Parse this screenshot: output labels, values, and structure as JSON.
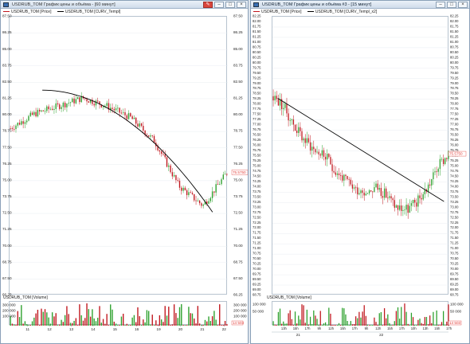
{
  "colors": {
    "bull": "#2ca02c",
    "bear": "#c0161d",
    "fit": "#000000",
    "price_tag": "#e3403a",
    "grid": "#e3e8ef"
  },
  "left": {
    "title": "USDRUB_TOM График цены и объёма - [60 минут]",
    "legend": [
      "USDRUB_TOM [Price]",
      "USDRUB_TOM [CURV_Templ]"
    ],
    "volume_legend": "USDRUB_TOM [Volume]",
    "buttons": [
      "pin-icon",
      "minimize-icon",
      "maximize-icon",
      "close-icon"
    ],
    "price_axis": [
      "87.50",
      "86.25",
      "85.00",
      "83.75",
      "82.50",
      "81.25",
      "80.00",
      "78.75",
      "77.50",
      "76.25",
      "75.00",
      "73.75",
      "72.50",
      "71.25",
      "70.00",
      "68.75",
      "67.50",
      "66.25"
    ],
    "current_price": "75.5750",
    "volume_axis": [
      "300 000",
      "200 000",
      "100 000"
    ],
    "volume_tag": "14 503",
    "dates": [
      "11",
      "12",
      "13",
      "14",
      "15",
      "16",
      "19",
      "20",
      "21",
      "22"
    ]
  },
  "right": {
    "title": "USDRUB_TOM График цены и объёма #3 - [15 минут]",
    "legend": [
      "USDRUB_TOM [Price]",
      "USDRUB_TOM [CURV_Templ_x2]"
    ],
    "volume_legend": "USDRUB_TOM [Volume]",
    "buttons": [
      "minimize-icon",
      "maximize-icon",
      "close-icon"
    ],
    "price_axis": [
      "82.25",
      "82.00",
      "81.75",
      "81.50",
      "81.25",
      "81.00",
      "80.75",
      "80.50",
      "80.25",
      "80.00",
      "79.75",
      "79.50",
      "79.25",
      "79.00",
      "78.75",
      "78.50",
      "78.25",
      "78.00",
      "77.75",
      "77.50",
      "77.25",
      "77.00",
      "76.75",
      "76.50",
      "76.25",
      "76.00",
      "75.75",
      "75.50",
      "75.25",
      "75.00",
      "74.75",
      "74.50",
      "74.25",
      "74.00",
      "73.75",
      "73.50",
      "73.25",
      "73.00",
      "72.75",
      "72.50",
      "72.25",
      "72.00",
      "71.75",
      "71.50",
      "71.25",
      "71.00",
      "70.75",
      "70.50",
      "70.25",
      "70.00",
      "69.75",
      "69.50",
      "69.25",
      "69.00",
      "68.75"
    ],
    "current_price": "75.5750",
    "volume_axis": [
      "100 000",
      "50 000"
    ],
    "volume_tag": "14 503",
    "time_ticks": [
      "13h",
      "15h",
      "17h",
      "9h",
      "12h",
      "15h",
      "17h",
      "9h",
      "12h",
      "15h",
      "17h",
      "10h",
      "13h",
      "15h",
      "17h"
    ],
    "day_labels": [
      "21",
      "22"
    ]
  },
  "chart_data": [
    {
      "type": "candlestick",
      "title": "USDRUB_TOM",
      "interval": "60 минут",
      "ylim": [
        66.25,
        87.5
      ],
      "x": [
        "11",
        "12",
        "13",
        "14",
        "15",
        "16",
        "19",
        "20",
        "21",
        "22"
      ],
      "close": [
        79.0,
        80.1,
        80.7,
        81.3,
        80.7,
        79.8,
        78.0,
        74.6,
        73.1,
        75.6
      ],
      "fit_curve": {
        "name": "USDRUB_TOM [CURV_Templ]",
        "shape": "parabola",
        "start": 81.9,
        "end": 72.6
      },
      "volume": [
        180000,
        110000,
        120000,
        260000,
        130000,
        160000,
        150000,
        190000,
        200000,
        14503
      ]
    },
    {
      "type": "candlestick",
      "title": "USDRUB_TOM",
      "interval": "15 минут",
      "ylim": [
        68.75,
        82.25
      ],
      "x": [
        "21",
        "22"
      ],
      "price_path": [
        78.4,
        77.9,
        77.0,
        76.3,
        75.8,
        75.5,
        74.8,
        74.3,
        73.9,
        73.8,
        74.0,
        73.6,
        73.0,
        72.9,
        73.3,
        74.0,
        75.0,
        75.6
      ],
      "fit_curve": {
        "name": "USDRUB_TOM [CURV_Templ_x2]",
        "shape": "line",
        "start": 78.3,
        "end": 73.3
      }
    }
  ]
}
